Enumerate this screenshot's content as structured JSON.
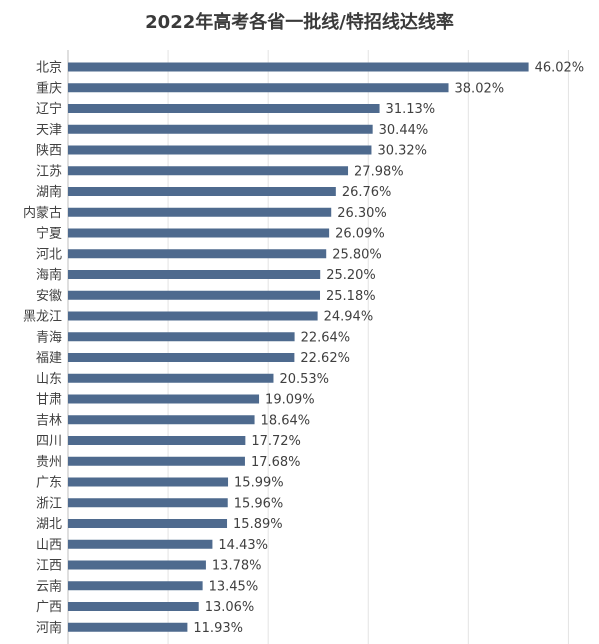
{
  "chart_data": {
    "type": "bar",
    "orientation": "horizontal",
    "title": "2022年高考各省一批线/特招线达线率",
    "xlabel": "",
    "ylabel": "",
    "xlim": [
      0,
      50
    ],
    "grid": true,
    "legend": "none",
    "bar_color": "#4E6A8E",
    "categories": [
      "北京",
      "重庆",
      "辽宁",
      "天津",
      "陕西",
      "江苏",
      "湖南",
      "内蒙古",
      "宁夏",
      "河北",
      "海南",
      "安徽",
      "黑龙江",
      "青海",
      "福建",
      "山东",
      "甘肃",
      "吉林",
      "四川",
      "贵州",
      "广东",
      "浙江",
      "湖北",
      "山西",
      "江西",
      "云南",
      "广西",
      "河南"
    ],
    "values": [
      46.02,
      38.02,
      31.13,
      30.44,
      30.32,
      27.98,
      26.76,
      26.3,
      26.09,
      25.8,
      25.2,
      25.18,
      24.94,
      22.64,
      22.62,
      20.53,
      19.09,
      18.64,
      17.72,
      17.68,
      15.99,
      15.96,
      15.89,
      14.43,
      13.78,
      13.45,
      13.06,
      11.93
    ],
    "value_labels": [
      "46.02%",
      "38.02%",
      "31.13%",
      "30.44%",
      "30.32%",
      "27.98%",
      "26.76%",
      "26.30%",
      "26.09%",
      "25.80%",
      "25.20%",
      "25.18%",
      "24.94%",
      "22.64%",
      "22.62%",
      "20.53%",
      "19.09%",
      "18.64%",
      "17.72%",
      "17.68%",
      "15.99%",
      "15.96%",
      "15.89%",
      "14.43%",
      "13.78%",
      "13.45%",
      "13.06%",
      "11.93%"
    ]
  }
}
